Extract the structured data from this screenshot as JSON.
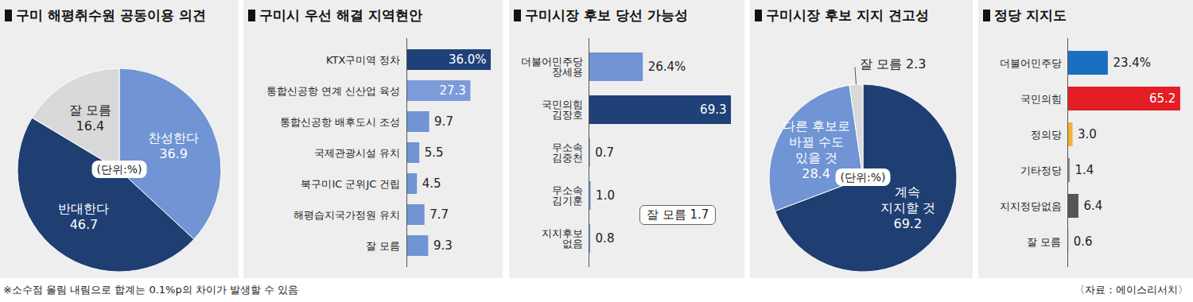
{
  "chart_data": [
    {
      "type": "pie",
      "title": "구미 해평취수원 공동이용 의견",
      "annotation": "(단위:%)",
      "categories": [
        "찬성한다",
        "반대한다",
        "잘 모름"
      ],
      "values": [
        36.9,
        46.7,
        16.4
      ],
      "colors": [
        "#7094d4",
        "#1f3f73",
        "#d9d9d9"
      ],
      "data_labels": true
    },
    {
      "type": "bar",
      "orientation": "horizontal",
      "title": "구미시 우선 해결 지역현안",
      "categories": [
        "KTX구미역 정차",
        "통합신공항 연계 신산업 육성",
        "통합신공항 배후도시 조성",
        "국제관광시설 유치",
        "북구미IC 군위JC 건립",
        "해평습지국가정원 유치",
        "잘 모름"
      ],
      "values": [
        36.0,
        27.3,
        9.7,
        5.5,
        4.5,
        7.7,
        9.3
      ],
      "value_labels": [
        "36.0%",
        "27.3",
        "9.7",
        "5.5",
        "4.5",
        "7.7",
        "9.3"
      ],
      "colors": [
        "#1f4178",
        "#7b9cd9",
        "#7094d4",
        "#7094d4",
        "#7094d4",
        "#7094d4",
        "#7094d4"
      ],
      "xlim": [
        0,
        37
      ],
      "tick_labels": "y",
      "data_labels": true
    },
    {
      "type": "bar",
      "orientation": "horizontal",
      "title": "구미시장 후보 당선 가능성",
      "annotation": "잘 모름 1.7",
      "categories": [
        "더불어민주당\n장세용",
        "국민의힘\n김장호",
        "무소속\n김중천",
        "무소속\n김기훈",
        "지지후보\n없음"
      ],
      "values": [
        26.4,
        69.3,
        0.7,
        1.0,
        0.8
      ],
      "value_labels": [
        "26.4%",
        "69.3",
        "0.7",
        "1.0",
        "0.8"
      ],
      "colors": [
        "#7094d4",
        "#1f4178",
        "#7094d4",
        "#7094d4",
        "#7094d4"
      ],
      "xlim": [
        0,
        72
      ],
      "tick_labels": "y",
      "data_labels": true
    },
    {
      "type": "pie",
      "title": "구미시장 후보 지지 견고성",
      "annotation": "(단위:%)",
      "categories": [
        "계속\n지지할 것",
        "다른 후보로\n바뀔 수도\n있을 것",
        "잘 모름"
      ],
      "values": [
        69.2,
        28.4,
        2.3
      ],
      "colors": [
        "#1f3f73",
        "#7094d4",
        "#d9d9d9"
      ],
      "data_labels": true
    },
    {
      "type": "bar",
      "orientation": "horizontal",
      "title": "정당 지지도",
      "categories": [
        "더불어민주당",
        "국민의힘",
        "정의당",
        "기타정당",
        "지지정당없음",
        "잘 모름"
      ],
      "values": [
        23.4,
        65.2,
        3.0,
        1.4,
        6.4,
        0.6
      ],
      "value_labels": [
        "23.4%",
        "65.2",
        "3.0",
        "1.4",
        "6.4",
        "0.6"
      ],
      "colors": [
        "#1a70c0",
        "#e31e25",
        "#f2b134",
        "#8c8c8c",
        "#555555",
        "#a0a0a0"
      ],
      "xlim": [
        0,
        68
      ],
      "tick_labels": "y",
      "data_labels": true
    }
  ],
  "footnote": "※소수점 올림 내림으로 합계는 0.1%p의 차이가 발생할 수 있음",
  "source": "〈자료：에이스리서치〉"
}
